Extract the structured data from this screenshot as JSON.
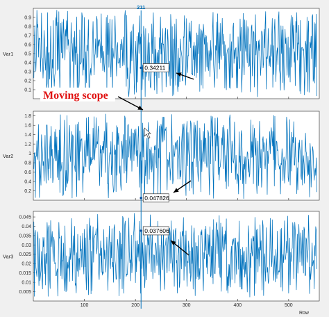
{
  "chart_data": {
    "type": "line",
    "xlabel": "Row",
    "xlim": [
      0,
      560
    ],
    "x_ticks": [
      100,
      200,
      300,
      400,
      500
    ],
    "line_color": "#0072bd",
    "scope_color": "#0072bd",
    "annotation_color": "#e01010",
    "scope": {
      "label": "211",
      "x": 211
    },
    "annotation": "Moving scope",
    "panels": [
      {
        "ylabel": "Var1",
        "ylim": [
          0,
          1
        ],
        "y_ticks": [
          0.1,
          0.2,
          0.3,
          0.4,
          0.5,
          0.6,
          0.7,
          0.8,
          0.9
        ],
        "y_tick_labels": [
          "0.1",
          "0.2",
          "0.3",
          "0.4",
          "0.5",
          "0.6",
          "0.7",
          "0.8",
          "0.9"
        ],
        "datatip": "0.34211",
        "scope_value": 0.34211,
        "series_range": [
          0.02,
          0.98
        ]
      },
      {
        "ylabel": "Var2",
        "ylim": [
          0,
          1.9
        ],
        "y_ticks": [
          0.2,
          0.4,
          0.6,
          0.8,
          1,
          1.2,
          1.4,
          1.6,
          1.8
        ],
        "y_tick_labels": [
          "0.2",
          "0.4",
          "0.6",
          "0.8",
          "1",
          "1.2",
          "1.4",
          "1.6",
          "1.8"
        ],
        "datatip": "0.047826",
        "scope_value": 0.047826,
        "series_range": [
          0.03,
          1.85
        ]
      },
      {
        "ylabel": "Var3",
        "ylim": [
          0,
          0.048
        ],
        "y_ticks": [
          0.005,
          0.01,
          0.015,
          0.02,
          0.025,
          0.03,
          0.035,
          0.04,
          0.045
        ],
        "y_tick_labels": [
          "0.005",
          "0.01",
          "0.015",
          "0.02",
          "0.025",
          "0.03",
          "0.035",
          "0.04",
          "0.045"
        ],
        "datatip": "0.037606",
        "scope_value": 0.037606,
        "series_range": [
          0.002,
          0.047
        ]
      }
    ]
  }
}
